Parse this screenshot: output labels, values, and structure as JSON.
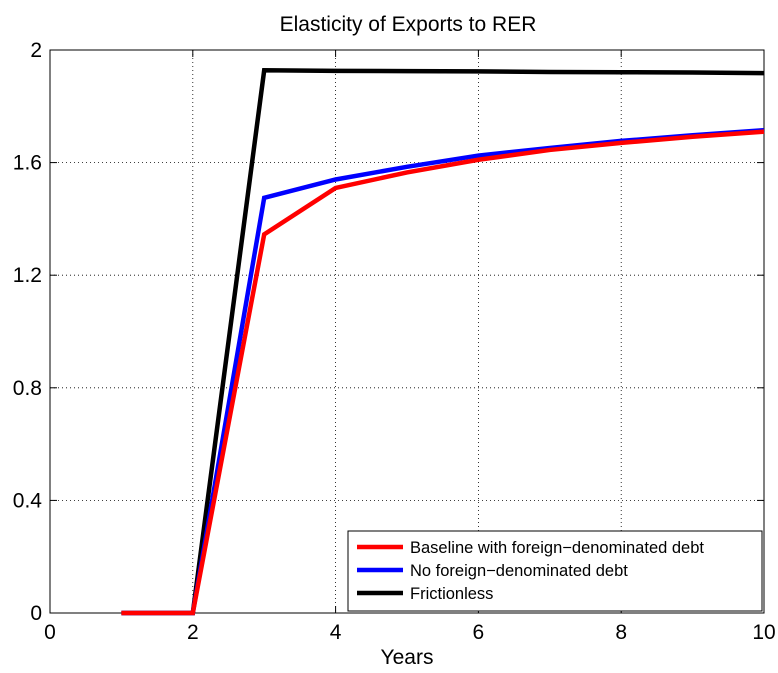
{
  "chart_data": {
    "type": "line",
    "title": "Elasticity of Exports to RER",
    "xlabel": "Years",
    "ylabel": "",
    "xlim": [
      0,
      10
    ],
    "ylim": [
      0,
      2
    ],
    "xticks": [
      0,
      2,
      4,
      6,
      8,
      10
    ],
    "xtick_labels": [
      "0",
      "2",
      "4",
      "6",
      "8",
      "10"
    ],
    "yticks": [
      0,
      0.4,
      0.8,
      1.2,
      1.6,
      2
    ],
    "ytick_labels": [
      "0",
      "0.4",
      "0.8",
      "1.2",
      "1.6",
      "2"
    ],
    "grid": true,
    "legend_position": "bottom-right",
    "series": [
      {
        "name": "Baseline with foreign−denominated debt",
        "color": "#ff0000",
        "x": [
          1,
          2,
          3,
          4,
          5,
          6,
          7,
          8,
          9,
          10
        ],
        "y": [
          0,
          0,
          1.345,
          1.51,
          1.565,
          1.61,
          1.645,
          1.67,
          1.692,
          1.71
        ]
      },
      {
        "name": "No foreign−denominated debt",
        "color": "#0000ff",
        "x": [
          1,
          2,
          3,
          4,
          5,
          6,
          7,
          8,
          9,
          10
        ],
        "y": [
          0,
          0,
          1.475,
          1.54,
          1.585,
          1.625,
          1.652,
          1.677,
          1.697,
          1.715
        ]
      },
      {
        "name": "Frictionless",
        "color": "#000000",
        "x": [
          1,
          2,
          3,
          4,
          5,
          6,
          7,
          8,
          9,
          10
        ],
        "y": [
          0,
          0,
          1.928,
          1.926,
          1.925,
          1.924,
          1.922,
          1.921,
          1.92,
          1.918
        ]
      }
    ]
  }
}
